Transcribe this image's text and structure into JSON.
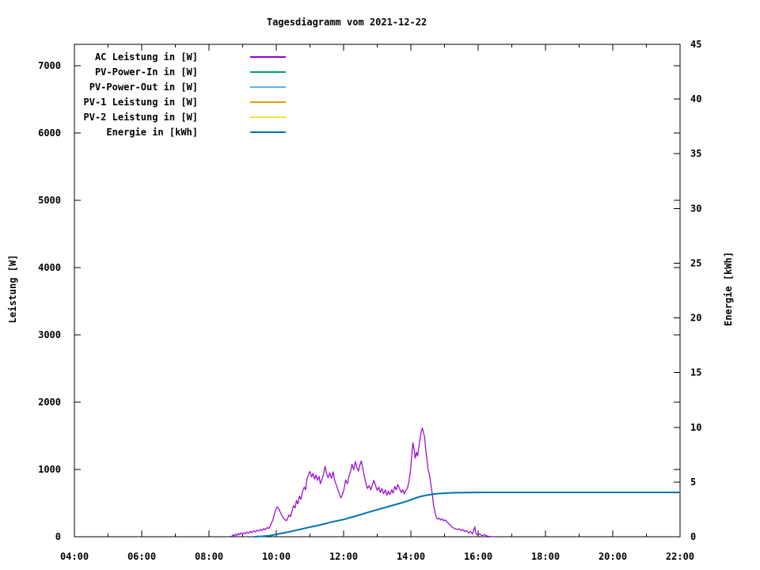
{
  "title": "Tagesdiagramm vom 2021-12-22",
  "axes": {
    "y_left_label": "Leistung [W]",
    "y_right_label": "Energie [kWh]"
  },
  "chart_data": {
    "type": "line",
    "title": "Tagesdiagramm vom 2021-12-22",
    "xlabel": "",
    "ylabel": "Leistung [W]",
    "y2label": "Energie [kWh]",
    "grid": false,
    "legend_position": "top-left",
    "x_range_hours": [
      4,
      22
    ],
    "x_tick_labels": [
      "04:00",
      "06:00",
      "08:00",
      "10:00",
      "12:00",
      "14:00",
      "16:00",
      "18:00",
      "20:00",
      "22:00"
    ],
    "x_major_tick_hours": [
      4,
      6,
      8,
      10,
      12,
      14,
      16,
      18,
      20,
      22
    ],
    "x_minor_tick_hours": [
      5,
      7,
      9,
      11,
      13,
      15,
      17,
      19,
      21
    ],
    "y_left_ticks": [
      0,
      1000,
      2000,
      3000,
      4000,
      5000,
      6000,
      7000
    ],
    "y_left_range": [
      0,
      7320
    ],
    "y_right_ticks": [
      0,
      5,
      10,
      15,
      20,
      25,
      30,
      35,
      40,
      45
    ],
    "y_right_range": [
      0,
      45
    ],
    "series": [
      {
        "name": "AC Leistung in [W]",
        "color": "#9400d3",
        "axis": "left",
        "points": [
          [
            8.62,
            0
          ],
          [
            8.68,
            8
          ],
          [
            8.72,
            28
          ],
          [
            8.75,
            12
          ],
          [
            8.79,
            38
          ],
          [
            8.83,
            18
          ],
          [
            8.87,
            50
          ],
          [
            8.91,
            28
          ],
          [
            8.95,
            58
          ],
          [
            8.99,
            35
          ],
          [
            9.03,
            62
          ],
          [
            9.08,
            42
          ],
          [
            9.13,
            70
          ],
          [
            9.18,
            52
          ],
          [
            9.23,
            80
          ],
          [
            9.28,
            62
          ],
          [
            9.33,
            88
          ],
          [
            9.38,
            72
          ],
          [
            9.43,
            98
          ],
          [
            9.48,
            84
          ],
          [
            9.53,
            108
          ],
          [
            9.58,
            92
          ],
          [
            9.63,
            122
          ],
          [
            9.68,
            105
          ],
          [
            9.73,
            138
          ],
          [
            9.78,
            122
          ],
          [
            9.82,
            160
          ],
          [
            9.86,
            205
          ],
          [
            9.9,
            255
          ],
          [
            9.94,
            330
          ],
          [
            9.98,
            400
          ],
          [
            10.02,
            445
          ],
          [
            10.06,
            425
          ],
          [
            10.1,
            385
          ],
          [
            10.15,
            330
          ],
          [
            10.2,
            288
          ],
          [
            10.25,
            255
          ],
          [
            10.3,
            238
          ],
          [
            10.34,
            275
          ],
          [
            10.38,
            325
          ],
          [
            10.42,
            298
          ],
          [
            10.47,
            385
          ],
          [
            10.51,
            462
          ],
          [
            10.56,
            428
          ],
          [
            10.6,
            540
          ],
          [
            10.64,
            488
          ],
          [
            10.69,
            605
          ],
          [
            10.73,
            558
          ],
          [
            10.78,
            672
          ],
          [
            10.83,
            738
          ],
          [
            10.87,
            698
          ],
          [
            10.91,
            855
          ],
          [
            10.96,
            925
          ],
          [
            11.0,
            972
          ],
          [
            11.05,
            888
          ],
          [
            11.09,
            942
          ],
          [
            11.14,
            858
          ],
          [
            11.18,
            918
          ],
          [
            11.22,
            838
          ],
          [
            11.27,
            898
          ],
          [
            11.31,
            788
          ],
          [
            11.36,
            858
          ],
          [
            11.41,
            938
          ],
          [
            11.45,
            1048
          ],
          [
            11.5,
            928
          ],
          [
            11.54,
            878
          ],
          [
            11.59,
            948
          ],
          [
            11.64,
            868
          ],
          [
            11.69,
            965
          ],
          [
            11.73,
            848
          ],
          [
            11.78,
            775
          ],
          [
            11.83,
            698
          ],
          [
            11.87,
            638
          ],
          [
            11.92,
            578
          ],
          [
            11.96,
            618
          ],
          [
            12.01,
            698
          ],
          [
            12.06,
            845
          ],
          [
            12.11,
            788
          ],
          [
            12.16,
            898
          ],
          [
            12.21,
            975
          ],
          [
            12.25,
            1078
          ],
          [
            12.3,
            998
          ],
          [
            12.35,
            1118
          ],
          [
            12.39,
            1038
          ],
          [
            12.44,
            975
          ],
          [
            12.48,
            1058
          ],
          [
            12.53,
            1128
          ],
          [
            12.57,
            1018
          ],
          [
            12.62,
            898
          ],
          [
            12.67,
            778
          ],
          [
            12.71,
            718
          ],
          [
            12.76,
            758
          ],
          [
            12.81,
            698
          ],
          [
            12.86,
            778
          ],
          [
            12.9,
            838
          ],
          [
            12.95,
            758
          ],
          [
            13.0,
            688
          ],
          [
            13.05,
            738
          ],
          [
            13.09,
            658
          ],
          [
            13.14,
            718
          ],
          [
            13.19,
            638
          ],
          [
            13.24,
            698
          ],
          [
            13.29,
            618
          ],
          [
            13.33,
            678
          ],
          [
            13.38,
            628
          ],
          [
            13.43,
            698
          ],
          [
            13.47,
            648
          ],
          [
            13.52,
            748
          ],
          [
            13.57,
            698
          ],
          [
            13.61,
            778
          ],
          [
            13.66,
            718
          ],
          [
            13.71,
            658
          ],
          [
            13.76,
            698
          ],
          [
            13.8,
            638
          ],
          [
            13.85,
            688
          ],
          [
            13.9,
            728
          ],
          [
            13.94,
            818
          ],
          [
            13.99,
            995
          ],
          [
            14.03,
            1245
          ],
          [
            14.06,
            1398
          ],
          [
            14.1,
            1278
          ],
          [
            14.13,
            1168
          ],
          [
            14.17,
            1258
          ],
          [
            14.2,
            1198
          ],
          [
            14.24,
            1338
          ],
          [
            14.27,
            1448
          ],
          [
            14.3,
            1548
          ],
          [
            14.34,
            1618
          ],
          [
            14.37,
            1558
          ],
          [
            14.41,
            1478
          ],
          [
            14.44,
            1298
          ],
          [
            14.48,
            1148
          ],
          [
            14.51,
            998
          ],
          [
            14.55,
            928
          ],
          [
            14.6,
            758
          ],
          [
            14.64,
            618
          ],
          [
            14.67,
            478
          ],
          [
            14.71,
            378
          ],
          [
            14.75,
            298
          ],
          [
            14.79,
            262
          ],
          [
            14.84,
            278
          ],
          [
            14.88,
            248
          ],
          [
            14.93,
            268
          ],
          [
            14.97,
            238
          ],
          [
            15.02,
            252
          ],
          [
            15.07,
            218
          ],
          [
            15.12,
            198
          ],
          [
            15.17,
            172
          ],
          [
            15.22,
            148
          ],
          [
            15.27,
            128
          ],
          [
            15.32,
            118
          ],
          [
            15.38,
            108
          ],
          [
            15.43,
            118
          ],
          [
            15.49,
            92
          ],
          [
            15.54,
            108
          ],
          [
            15.59,
            78
          ],
          [
            15.65,
            92
          ],
          [
            15.71,
            58
          ],
          [
            15.77,
            78
          ],
          [
            15.83,
            42
          ],
          [
            15.9,
            148
          ],
          [
            15.93,
            58
          ],
          [
            15.97,
            28
          ],
          [
            16.04,
            42
          ],
          [
            16.11,
            18
          ],
          [
            16.19,
            28
          ],
          [
            16.28,
            8
          ],
          [
            16.38,
            4
          ],
          [
            16.47,
            0
          ]
        ]
      },
      {
        "name": "PV-Power-In in [W]",
        "color": "#009e73",
        "axis": "left",
        "points": []
      },
      {
        "name": "PV-Power-Out in [W]",
        "color": "#56b4e9",
        "axis": "left",
        "points": []
      },
      {
        "name": "PV-1 Leistung in [W]",
        "color": "#e69f00",
        "axis": "left",
        "points": []
      },
      {
        "name": "PV-2 Leistung in [W]",
        "color": "#f0e442",
        "axis": "left",
        "points": []
      },
      {
        "name": "Energie in [kWh]",
        "color": "#0072b2",
        "axis": "right",
        "points": [
          [
            9.35,
            0
          ],
          [
            9.6,
            0.04
          ],
          [
            9.8,
            0.1
          ],
          [
            10.0,
            0.22
          ],
          [
            10.3,
            0.4
          ],
          [
            10.6,
            0.6
          ],
          [
            10.95,
            0.85
          ],
          [
            11.3,
            1.08
          ],
          [
            11.65,
            1.35
          ],
          [
            12.0,
            1.58
          ],
          [
            12.35,
            1.88
          ],
          [
            12.7,
            2.2
          ],
          [
            13.05,
            2.52
          ],
          [
            13.4,
            2.82
          ],
          [
            13.75,
            3.12
          ],
          [
            14.0,
            3.38
          ],
          [
            14.25,
            3.65
          ],
          [
            14.5,
            3.82
          ],
          [
            14.75,
            3.92
          ],
          [
            15.0,
            3.98
          ],
          [
            15.3,
            4.02
          ],
          [
            16.0,
            4.05
          ],
          [
            22.0,
            4.05
          ]
        ]
      }
    ]
  }
}
